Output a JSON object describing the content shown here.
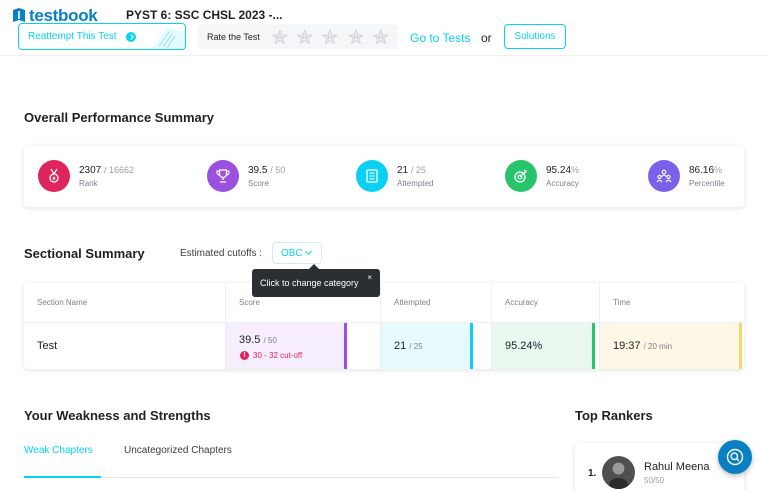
{
  "header": {
    "logo_text": "testbook",
    "test_title": "PYST 6: SSC CHSL 2023 -...",
    "reattempt_label": "Reattempt This Test",
    "rate_label": "Rate the Test",
    "rating_stars": 5,
    "goto_label": "Go to Tests",
    "or_text": "or",
    "solutions_label": "Solutions"
  },
  "overall": {
    "title": "Overall Performance Summary",
    "stats": [
      {
        "value": "2307",
        "sub": "/ 16662",
        "label": "Rank",
        "color": "#e0245e",
        "icon": "medal-icon"
      },
      {
        "value": "39.5",
        "sub": "/ 50",
        "label": "Score",
        "color": "#9b51e0",
        "icon": "trophy-icon"
      },
      {
        "value": "21",
        "sub": "/ 25",
        "label": "Attempted",
        "color": "#0ad0f4",
        "icon": "checklist-icon"
      },
      {
        "value": "95.24",
        "sub": "%",
        "label": "Accuracy",
        "color": "#27c46b",
        "icon": "target-icon"
      },
      {
        "value": "86.16",
        "sub": "%",
        "label": "Percentile",
        "color": "#7b61e8",
        "icon": "users-icon"
      }
    ]
  },
  "sectional": {
    "title": "Sectional Summary",
    "cutoff_label": "Estimated cutoffs :",
    "cutoff_value": "OBC",
    "tooltip": "Click to change category",
    "tooltip_close": "×",
    "columns": [
      "Section Name",
      "Score",
      "Attempted",
      "Accuracy",
      "Time"
    ],
    "row": {
      "name": "Test",
      "score": "39.5",
      "score_sub": "/ 50",
      "cutoff_note": "30 - 32 cut-off",
      "cutoff_mark": "!",
      "attempted": "21",
      "attempted_sub": "/ 25",
      "accuracy": "95.24%",
      "time": "19:37",
      "time_sub": "/ 20 min"
    },
    "colors": {
      "score": "#9b51e0",
      "attempted": "#0ad0f4",
      "accuracy": "#27c46b",
      "time": "#f5d76e"
    }
  },
  "weakness": {
    "title": "Your Weakness and Strengths",
    "tabs": [
      "Weak Chapters",
      "Uncategorized Chapters"
    ]
  },
  "rankers": {
    "title": "Top Rankers",
    "items": [
      {
        "rank": "1.",
        "name": "Rahul Meena",
        "score": "50/50"
      }
    ]
  }
}
